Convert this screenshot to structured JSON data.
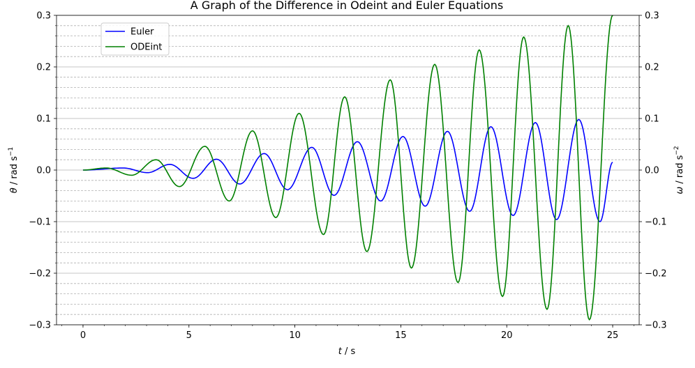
{
  "chart_data": {
    "type": "line",
    "title": "A Graph of the Difference in Odeint and Euler Equations",
    "xlabel_var": "t",
    "xlabel_unit": " / s",
    "ylabel_left_var": "θ",
    "ylabel_left_unit": " / rad s",
    "ylabel_left_exp": "−1",
    "ylabel_right_var": "ω",
    "ylabel_right_unit": " / rad s",
    "ylabel_right_exp": "−2",
    "xlim": [
      -1.25,
      26.25
    ],
    "ylim": [
      -0.3,
      0.3
    ],
    "x_ticks": [
      0,
      5,
      10,
      15,
      20,
      25
    ],
    "x_tick_labels": [
      "0",
      "5",
      "10",
      "15",
      "20",
      "25"
    ],
    "y_ticks": [
      -0.3,
      -0.2,
      -0.1,
      0.0,
      0.1,
      0.2,
      0.3
    ],
    "y_tick_labels": [
      "−0.3",
      "−0.2",
      "−0.1",
      "0.0",
      "0.1",
      "0.2",
      "0.3"
    ],
    "grid": "major solid, minor dashed (y axis)",
    "legend_position": "top-left",
    "series": [
      {
        "name": "Euler",
        "color": "#0000ff",
        "x": [
          0,
          1.9,
          3.05,
          4.1,
          5.2,
          6.3,
          7.4,
          8.55,
          9.65,
          10.8,
          11.85,
          12.95,
          14.05,
          15.1,
          16.15,
          17.2,
          18.25,
          19.25,
          20.3,
          21.35,
          22.35,
          23.4,
          24.4,
          25
        ],
        "y": [
          0,
          0.004,
          -0.005,
          0.011,
          -0.016,
          0.021,
          -0.027,
          0.032,
          -0.038,
          0.044,
          -0.049,
          0.055,
          -0.06,
          0.065,
          -0.07,
          0.075,
          -0.08,
          0.084,
          -0.088,
          0.092,
          -0.096,
          0.098,
          -0.1,
          0.015
        ]
      },
      {
        "name": "ODEint",
        "color": "#008000",
        "x": [
          0,
          1.1,
          2.3,
          3.45,
          4.55,
          5.75,
          6.9,
          8.0,
          9.1,
          10.2,
          11.35,
          12.35,
          13.4,
          14.5,
          15.5,
          16.6,
          17.7,
          18.7,
          19.8,
          20.8,
          21.9,
          22.9,
          23.9,
          25
        ],
        "y": [
          0,
          0.004,
          -0.01,
          0.02,
          -0.032,
          0.046,
          -0.06,
          0.076,
          -0.092,
          0.11,
          -0.125,
          0.142,
          -0.158,
          0.175,
          -0.19,
          0.205,
          -0.218,
          0.233,
          -0.245,
          0.258,
          -0.27,
          0.28,
          -0.29,
          0.3
        ]
      }
    ]
  }
}
